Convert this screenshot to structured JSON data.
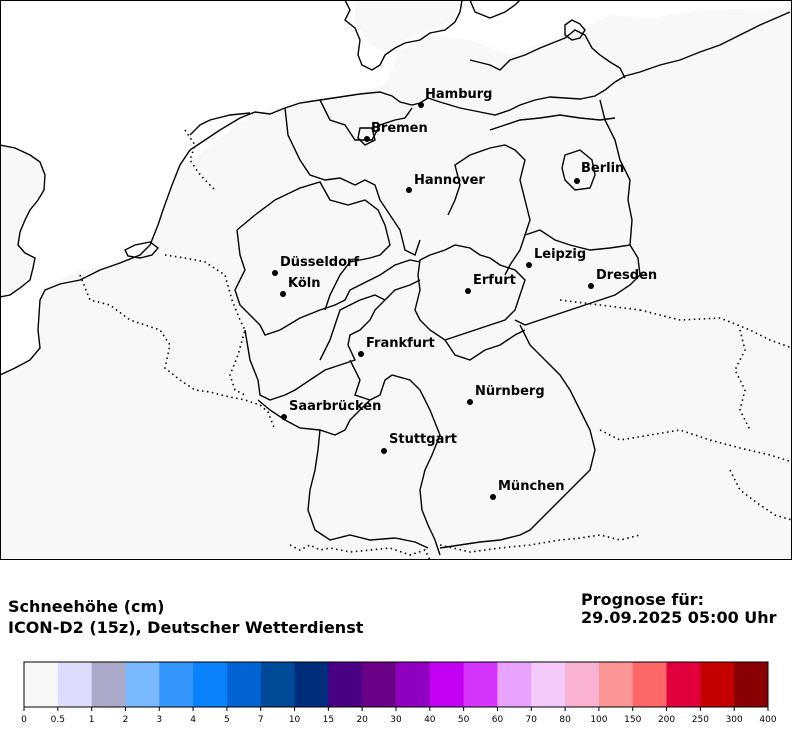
{
  "map": {
    "cities": [
      {
        "name": "Hamburg",
        "id": "hamburg"
      },
      {
        "name": "Bremen",
        "id": "bremen"
      },
      {
        "name": "Berlin",
        "id": "berlin"
      },
      {
        "name": "Hannover",
        "id": "hannover"
      },
      {
        "name": "Düsseldorf",
        "id": "duesseldorf"
      },
      {
        "name": "Leipzig",
        "id": "leipzig"
      },
      {
        "name": "Köln",
        "id": "koeln"
      },
      {
        "name": "Erfurt",
        "id": "erfurt"
      },
      {
        "name": "Dresden",
        "id": "dresden"
      },
      {
        "name": "Frankfurt",
        "id": "frankfurt"
      },
      {
        "name": "Nürnberg",
        "id": "nuernberg"
      },
      {
        "name": "Saarbrücken",
        "id": "saarbruecken"
      },
      {
        "name": "Stuttgart",
        "id": "stuttgart"
      },
      {
        "name": "München",
        "id": "muenchen"
      }
    ]
  },
  "caption": {
    "variable": "Schneehöhe (cm)",
    "model": "ICON-D2 (15z), Deutscher Wetterdienst",
    "forecast_label": "Prognose für:",
    "forecast_time": "29.09.2025 05:00 Uhr"
  },
  "legend": {
    "ticks": [
      "0",
      "0.5",
      "1",
      "2",
      "3",
      "4",
      "5",
      "7",
      "10",
      "15",
      "20",
      "30",
      "40",
      "50",
      "60",
      "70",
      "80",
      "100",
      "150",
      "200",
      "250",
      "300",
      "400"
    ],
    "colors": [
      "#f8f8f8",
      "#dcdcfc",
      "#aaaac8",
      "#78b8fc",
      "#3496fc",
      "#0a82fc",
      "#0064d4",
      "#004a9a",
      "#002c7c",
      "#4a0082",
      "#6a0086",
      "#9000c0",
      "#c400f4",
      "#d434fc",
      "#e8a4fc",
      "#f4cafc",
      "#f8b2d4",
      "#fc9696",
      "#fc6666",
      "#e2003c",
      "#c40000",
      "#8a0000"
    ]
  },
  "colors": {
    "ocean": "#ffffff",
    "land": "#f8f8f8",
    "outline": "#000000"
  }
}
